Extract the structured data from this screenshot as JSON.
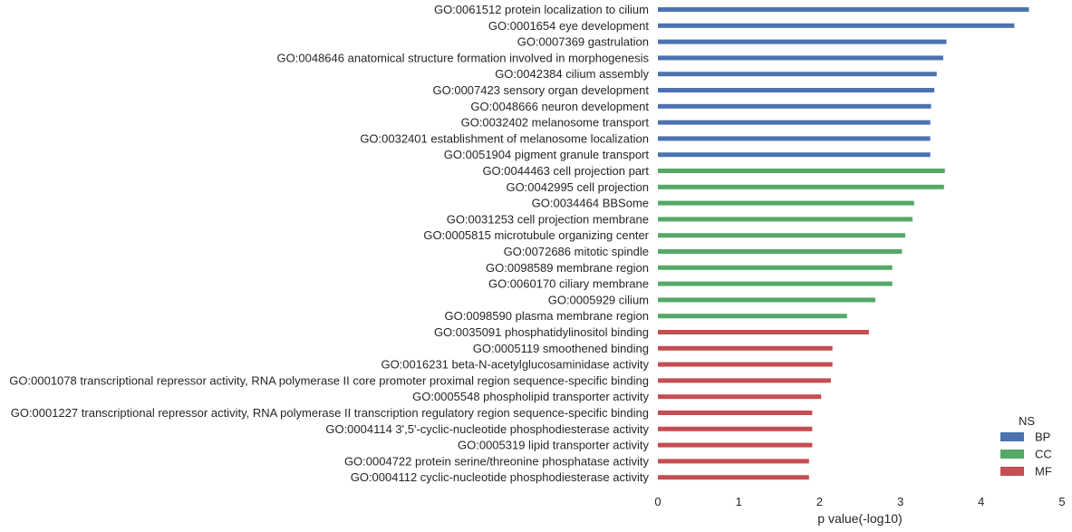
{
  "chart_data": {
    "type": "bar",
    "orientation": "horizontal",
    "xlabel": "p value(-log10)",
    "ylabel": "",
    "xlim": [
      0,
      5
    ],
    "x_ticks": [
      "0",
      "1",
      "2",
      "3",
      "4",
      "5"
    ],
    "grid": false,
    "legend": {
      "title": "NS",
      "placement": "bottom-right",
      "entries": [
        {
          "name": "BP",
          "color": "#4c72b0"
        },
        {
          "name": "CC",
          "color": "#55a868"
        },
        {
          "name": "MF",
          "color": "#c44e52"
        }
      ]
    },
    "bars": [
      {
        "label": "GO:0061512 protein localization to cilium",
        "value": 4.59,
        "ns": "BP"
      },
      {
        "label": "GO:0001654 eye development",
        "value": 4.41,
        "ns": "BP"
      },
      {
        "label": "GO:0007369 gastrulation",
        "value": 3.57,
        "ns": "BP"
      },
      {
        "label": "GO:0048646 anatomical structure formation involved in morphogenesis",
        "value": 3.53,
        "ns": "BP"
      },
      {
        "label": "GO:0042384 cilium assembly",
        "value": 3.45,
        "ns": "BP"
      },
      {
        "label": "GO:0007423 sensory organ development",
        "value": 3.42,
        "ns": "BP"
      },
      {
        "label": "GO:0048666 neuron development",
        "value": 3.38,
        "ns": "BP"
      },
      {
        "label": "GO:0032402 melanosome transport",
        "value": 3.37,
        "ns": "BP"
      },
      {
        "label": "GO:0032401 establishment of melanosome localization",
        "value": 3.37,
        "ns": "BP"
      },
      {
        "label": "GO:0051904 pigment granule transport",
        "value": 3.37,
        "ns": "BP"
      },
      {
        "label": "GO:0044463 cell projection part",
        "value": 3.55,
        "ns": "CC"
      },
      {
        "label": "GO:0042995 cell projection",
        "value": 3.54,
        "ns": "CC"
      },
      {
        "label": "GO:0034464 BBSome",
        "value": 3.17,
        "ns": "CC"
      },
      {
        "label": "GO:0031253 cell projection membrane",
        "value": 3.15,
        "ns": "CC"
      },
      {
        "label": "GO:0005815 microtubule organizing center",
        "value": 3.06,
        "ns": "CC"
      },
      {
        "label": "GO:0072686 mitotic spindle",
        "value": 3.02,
        "ns": "CC"
      },
      {
        "label": "GO:0098589 membrane region",
        "value": 2.9,
        "ns": "CC"
      },
      {
        "label": "GO:0060170 ciliary membrane",
        "value": 2.9,
        "ns": "CC"
      },
      {
        "label": "GO:0005929 cilium",
        "value": 2.69,
        "ns": "CC"
      },
      {
        "label": "GO:0098590 plasma membrane region",
        "value": 2.34,
        "ns": "CC"
      },
      {
        "label": "GO:0035091 phosphatidylinositol binding",
        "value": 2.61,
        "ns": "MF"
      },
      {
        "label": "GO:0005119 smoothened binding",
        "value": 2.16,
        "ns": "MF"
      },
      {
        "label": "GO:0016231 beta-N-acetylglucosaminidase activity",
        "value": 2.16,
        "ns": "MF"
      },
      {
        "label": "GO:0001078 transcriptional repressor activity, RNA polymerase II core promoter proximal region sequence-specific binding",
        "value": 2.14,
        "ns": "MF"
      },
      {
        "label": "GO:0005548 phospholipid transporter activity",
        "value": 2.02,
        "ns": "MF"
      },
      {
        "label": "GO:0001227 transcriptional repressor activity, RNA polymerase II transcription regulatory region sequence-specific binding",
        "value": 1.91,
        "ns": "MF"
      },
      {
        "label": "GO:0004114 3',5'-cyclic-nucleotide phosphodiesterase activity",
        "value": 1.91,
        "ns": "MF"
      },
      {
        "label": "GO:0005319 lipid transporter activity",
        "value": 1.91,
        "ns": "MF"
      },
      {
        "label": "GO:0004722 protein serine/threonine phosphatase activity",
        "value": 1.87,
        "ns": "MF"
      },
      {
        "label": "GO:0004112 cyclic-nucleotide phosphodiesterase activity",
        "value": 1.87,
        "ns": "MF"
      }
    ]
  }
}
